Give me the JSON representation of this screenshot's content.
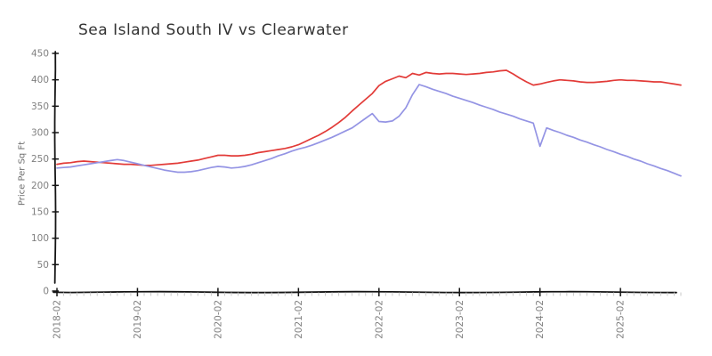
{
  "chart_data": {
    "type": "line",
    "title": "Sea Island South IV vs Clearwater",
    "xlabel": "",
    "ylabel": "Price Per Sq Ft",
    "ylim": [
      0,
      450
    ],
    "yticks": [
      0,
      50,
      100,
      150,
      200,
      250,
      300,
      350,
      400,
      450
    ],
    "x_start": "2018-02",
    "x_interval": "month",
    "x_major_tick_labels": [
      "2018-02",
      "2019-02",
      "2020-02",
      "2021-02",
      "2022-02",
      "2023-02",
      "2024-02",
      "2025-02"
    ],
    "grid": false,
    "legend": "none",
    "style": "xkcd-sketch",
    "colors": {
      "series1": "#e23b38",
      "series2": "#9494e4",
      "tick_label": "#7f7f7f",
      "spine": "#141414",
      "minor_tick": "#c9c9c9",
      "title": "#333333"
    },
    "series": [
      {
        "name": "Sea Island South IV",
        "color_key": "series1",
        "values": [
          240,
          242,
          243,
          245,
          246,
          245,
          244,
          243,
          242,
          241,
          240,
          240,
          239,
          238,
          238,
          239,
          240,
          241,
          242,
          244,
          246,
          248,
          251,
          254,
          257,
          257,
          256,
          256,
          257,
          259,
          262,
          264,
          266,
          268,
          270,
          273,
          277,
          283,
          289,
          295,
          302,
          310,
          319,
          329,
          341,
          352,
          363,
          374,
          389,
          397,
          402,
          407,
          404,
          412,
          409,
          414,
          412,
          411,
          412,
          412,
          411,
          410,
          411,
          412,
          414,
          415,
          417,
          418,
          411,
          403,
          396,
          390,
          392,
          395,
          398,
          400,
          399,
          398,
          396,
          395,
          395,
          396,
          397,
          399,
          400,
          399,
          399,
          398,
          397,
          396,
          396,
          394,
          392,
          390
        ]
      },
      {
        "name": "Clearwater",
        "color_key": "series2",
        "values": [
          233,
          234,
          235,
          237,
          239,
          241,
          243,
          245,
          247,
          249,
          247,
          244,
          241,
          238,
          235,
          232,
          229,
          227,
          225,
          225,
          226,
          228,
          231,
          234,
          236,
          235,
          233,
          234,
          236,
          239,
          243,
          247,
          251,
          256,
          260,
          265,
          269,
          272,
          276,
          281,
          286,
          291,
          297,
          303,
          309,
          318,
          327,
          336,
          321,
          320,
          322,
          331,
          347,
          372,
          391,
          387,
          382,
          378,
          374,
          369,
          365,
          361,
          357,
          352,
          348,
          344,
          339,
          335,
          331,
          326,
          322,
          318,
          274,
          309,
          304,
          300,
          295,
          291,
          286,
          282,
          277,
          273,
          268,
          264,
          259,
          255,
          250,
          246,
          241,
          237,
          232,
          228,
          223,
          218
        ]
      }
    ]
  }
}
